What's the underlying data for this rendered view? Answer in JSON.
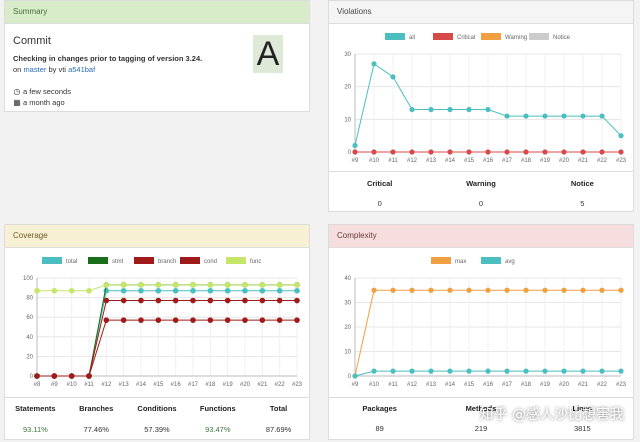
{
  "summary": {
    "header": "Summary",
    "commit_title": "Commit",
    "message": "Checking in changes prior to tagging of version 3.24.",
    "on_prefix": "on",
    "branch": "master",
    "by_text": "by vti",
    "hash": "a541baf",
    "grade": "A",
    "time_ago": "a few seconds",
    "date_ago": "a month ago"
  },
  "violations": {
    "header": "Violations",
    "legend": [
      "all",
      "Critical",
      "Warning",
      "Notice"
    ],
    "legend_colors": [
      "#4bbfbf",
      "#d84a4a",
      "#f0a040",
      "#cccccc"
    ],
    "stats_headers": [
      "Critical",
      "Warning",
      "Notice"
    ],
    "stats_values": [
      "0",
      "0",
      "5"
    ]
  },
  "coverage": {
    "header": "Coverage",
    "legend": [
      "total",
      "stmt",
      "branch",
      "cond",
      "func"
    ],
    "stats_headers": [
      "Statements",
      "Branches",
      "Conditions",
      "Functions",
      "Total"
    ],
    "stats_values": [
      "93.11%",
      "77.46%",
      "57.39%",
      "93.47%",
      "87.69%"
    ]
  },
  "complexity": {
    "header": "Complexity",
    "legend": [
      "max",
      "avg"
    ],
    "legend_colors": [
      "#f0a040",
      "#4bbfbf"
    ],
    "stats_headers": [
      "Packages",
      "Methods",
      "Lines"
    ],
    "stats_values": [
      "89",
      "219",
      "3815"
    ]
  },
  "watermark": "知乎 @感人沙比想害我",
  "chart_data": [
    {
      "type": "line",
      "title": "Violations",
      "categories": [
        "#9",
        "#10",
        "#11",
        "#12",
        "#13",
        "#14",
        "#15",
        "#16",
        "#17",
        "#18",
        "#19",
        "#20",
        "#21",
        "#22",
        "#23"
      ],
      "ylim": [
        0,
        30
      ],
      "yticks": [
        "0",
        "10",
        "20",
        "30"
      ],
      "legend_position": "top",
      "series": [
        {
          "name": "all",
          "color": "#4bbfbf",
          "values": [
            2,
            27,
            23,
            13,
            13,
            13,
            13,
            13,
            11,
            11,
            11,
            11,
            11,
            11,
            5
          ]
        },
        {
          "name": "Critical",
          "color": "#d84a4a",
          "values": [
            0,
            0,
            0,
            0,
            0,
            0,
            0,
            0,
            0,
            0,
            0,
            0,
            0,
            0,
            0
          ]
        }
      ]
    },
    {
      "type": "line",
      "title": "Coverage",
      "categories": [
        "#8",
        "#9",
        "#10",
        "#11",
        "#12",
        "#13",
        "#14",
        "#15",
        "#16",
        "#17",
        "#18",
        "#19",
        "#20",
        "#21",
        "#22",
        "#23"
      ],
      "ylim": [
        0,
        100
      ],
      "yticks": [
        "0",
        "20",
        "40",
        "60",
        "80",
        "100"
      ],
      "legend_position": "top",
      "series": [
        {
          "name": "total",
          "color": "#4bbfbf",
          "values": [
            0,
            0,
            0,
            0,
            87,
            87,
            87,
            87,
            87,
            87,
            87,
            87,
            87,
            87,
            87,
            87
          ]
        },
        {
          "name": "stmt",
          "color": "#1a6e1a",
          "values": [
            0,
            0,
            0,
            0,
            93,
            93,
            93,
            93,
            93,
            93,
            93,
            93,
            93,
            93,
            93,
            93
          ]
        },
        {
          "name": "branch",
          "color": "#a01a1a",
          "values": [
            0,
            0,
            0,
            0,
            77,
            77,
            77,
            77,
            77,
            77,
            77,
            77,
            77,
            77,
            77,
            77
          ]
        },
        {
          "name": "cond",
          "color": "#a01a1a",
          "values": [
            0,
            0,
            0,
            0,
            57,
            57,
            57,
            57,
            57,
            57,
            57,
            57,
            57,
            57,
            57,
            57
          ]
        },
        {
          "name": "func",
          "color": "#c6e66a",
          "values": [
            87,
            87,
            87,
            87,
            93,
            93,
            93,
            93,
            93,
            93,
            93,
            93,
            93,
            93,
            93,
            93
          ]
        }
      ]
    },
    {
      "type": "line",
      "title": "Complexity",
      "categories": [
        "#9",
        "#10",
        "#11",
        "#12",
        "#13",
        "#14",
        "#15",
        "#16",
        "#17",
        "#18",
        "#19",
        "#20",
        "#21",
        "#22",
        "#23"
      ],
      "ylim": [
        0,
        40
      ],
      "yticks": [
        "0",
        "10",
        "20",
        "30",
        "40"
      ],
      "legend_position": "top",
      "series": [
        {
          "name": "max",
          "color": "#f0a040",
          "values": [
            0,
            35,
            35,
            35,
            35,
            35,
            35,
            35,
            35,
            35,
            35,
            35,
            35,
            35,
            35
          ]
        },
        {
          "name": "avg",
          "color": "#4bbfbf",
          "values": [
            0,
            2,
            2,
            2,
            2,
            2,
            2,
            2,
            2,
            2,
            2,
            2,
            2,
            2,
            2
          ]
        }
      ]
    }
  ]
}
